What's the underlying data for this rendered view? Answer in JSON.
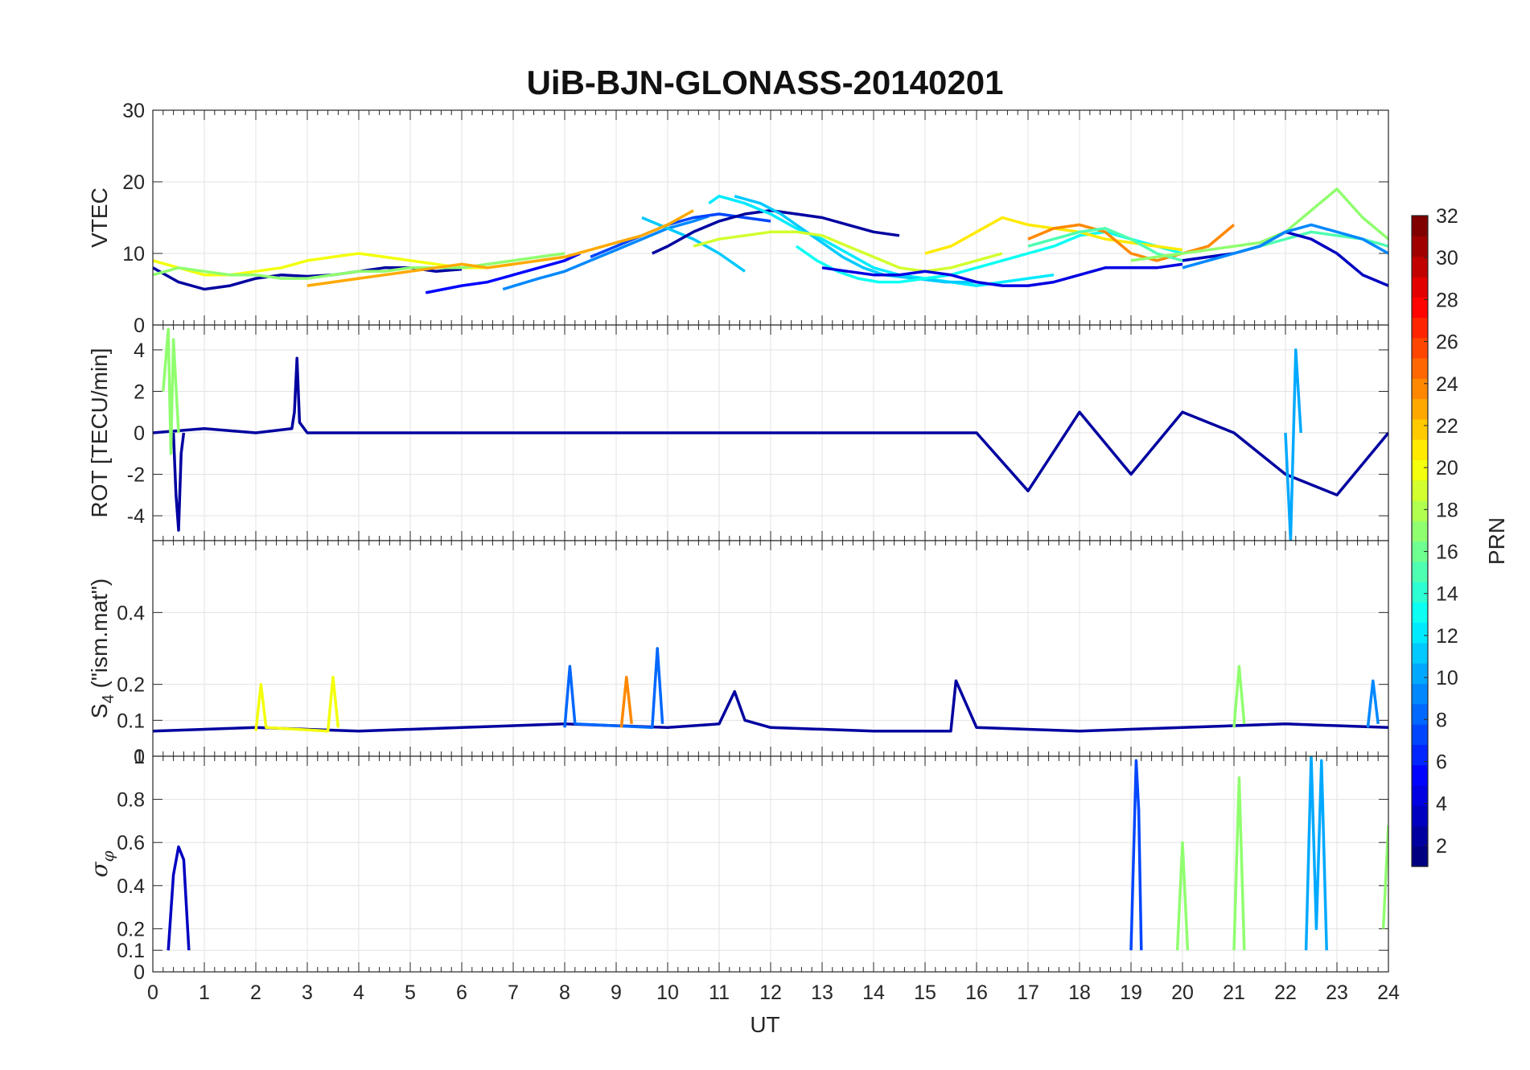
{
  "chart_data": {
    "type": "line",
    "title": "UiB-BJN-GLONASS-20140201",
    "xlabel": "UT",
    "xlim": [
      0,
      24
    ],
    "x_ticks": [
      "0",
      "1",
      "2",
      "3",
      "4",
      "5",
      "6",
      "7",
      "8",
      "9",
      "10",
      "11",
      "12",
      "13",
      "14",
      "15",
      "16",
      "17",
      "18",
      "19",
      "20",
      "21",
      "22",
      "23",
      "24"
    ],
    "grid": true,
    "colormap": "jet",
    "colorbar": {
      "label": "PRN",
      "range": [
        1,
        32
      ],
      "ticks": [
        "2",
        "4",
        "6",
        "8",
        "10",
        "12",
        "14",
        "16",
        "18",
        "20",
        "22",
        "24",
        "26",
        "28",
        "30",
        "32"
      ],
      "placement": "right"
    },
    "panels": [
      {
        "id": "vtec",
        "ylabel": "VTEC",
        "ylim": [
          0,
          30
        ],
        "y_ticks": [
          "0",
          "10",
          "20",
          "30"
        ],
        "series": [
          {
            "prn": 2,
            "x": [
              0,
              0.5,
              1,
              1.5,
              2,
              2.5,
              3,
              3.5,
              4,
              4.5,
              5,
              5.5,
              6
            ],
            "y": [
              8,
              6,
              5,
              5.5,
              6.5,
              7,
              6.8,
              7,
              7.5,
              8,
              8,
              7.5,
              7.8
            ]
          },
          {
            "prn": 5,
            "x": [
              5.3,
              6,
              6.5,
              7,
              7.5,
              8,
              8.3
            ],
            "y": [
              4.5,
              5.5,
              6,
              7,
              8,
              9,
              10
            ]
          },
          {
            "prn": 9,
            "x": [
              6.8,
              7.5,
              8,
              8.5,
              9,
              9.5,
              10,
              10.5,
              10.8
            ],
            "y": [
              5,
              6.5,
              7.5,
              9,
              10.5,
              12,
              13.5,
              14.5,
              15.2
            ]
          },
          {
            "prn": 7,
            "x": [
              8.5,
              9,
              9.5,
              10,
              10.5,
              11,
              11.5,
              12
            ],
            "y": [
              9.5,
              11,
              12.5,
              14,
              15,
              15.5,
              15,
              14.5
            ]
          },
          {
            "prn": 11,
            "x": [
              9.5,
              10,
              10.5,
              11,
              11.5
            ],
            "y": [
              15,
              13.5,
              12,
              10,
              7.5
            ]
          },
          {
            "prn": 2,
            "x": [
              9.7,
              10,
              10.5,
              11,
              11.5,
              12,
              12.5,
              13,
              13.5,
              14,
              14.5
            ],
            "y": [
              10,
              11,
              13,
              14.5,
              15.5,
              16,
              15.5,
              15,
              14,
              13,
              12.5
            ]
          },
          {
            "prn": 12,
            "x": [
              10.8,
              11,
              11.5,
              12,
              12.5,
              13,
              13.5,
              14,
              14.5,
              15,
              15.5,
              16,
              16.5,
              17,
              17.5
            ],
            "y": [
              17,
              18,
              17,
              15.5,
              13.5,
              12,
              10,
              8,
              7,
              6.5,
              6,
              5.5,
              6,
              6.5,
              7
            ]
          },
          {
            "prn": 11,
            "x": [
              11.3,
              11.8,
              12.2,
              12.6,
              13,
              13.4,
              13.8,
              14.2,
              14.8,
              15.4,
              16
            ],
            "y": [
              18,
              17,
              15.5,
              13.5,
              11.5,
              9.5,
              8,
              7,
              6.5,
              6,
              6
            ]
          },
          {
            "prn": 13,
            "x": [
              12.5,
              12.9,
              13.3,
              13.7,
              14.1,
              14.5,
              15,
              15.5,
              16,
              16.5,
              17,
              17.5,
              18,
              18.5,
              19,
              19.5,
              20
            ],
            "y": [
              11,
              9,
              7.5,
              6.5,
              6,
              6,
              6.5,
              7,
              8,
              9,
              10,
              11,
              12.5,
              13,
              12,
              11,
              10
            ]
          },
          {
            "prn": 19,
            "x": [
              10.5,
              11,
              11.5,
              12,
              12.5,
              13,
              13.5,
              14,
              14.5,
              15,
              15.5,
              16,
              16.5
            ],
            "y": [
              11,
              12,
              12.5,
              13,
              13,
              12.5,
              11,
              9.5,
              8,
              7.5,
              8,
              9,
              10
            ]
          },
          {
            "prn": 4,
            "x": [
              13,
              13.5,
              14,
              14.5,
              15,
              15.5,
              16,
              16.5,
              17,
              17.5,
              18,
              18.5,
              19,
              19.5,
              20
            ],
            "y": [
              8,
              7.5,
              7,
              7,
              7.5,
              7,
              6,
              5.5,
              5.5,
              6,
              7,
              8,
              8,
              8,
              8.5
            ]
          },
          {
            "prn": 20,
            "x": [
              0,
              0.5,
              1,
              1.5,
              2,
              2.5,
              3,
              3.5,
              4,
              4.5,
              5,
              5.5,
              6,
              6.5,
              7
            ],
            "y": [
              9,
              8,
              7,
              7,
              7.5,
              8,
              9,
              9.5,
              10,
              9.5,
              9,
              8.5,
              8,
              8,
              8.5
            ]
          },
          {
            "prn": 17,
            "x": [
              0,
              0.5,
              1,
              1.5,
              2,
              2.5,
              3,
              3.5,
              4,
              4.5,
              5,
              5.5,
              6,
              6.5,
              7,
              7.5,
              8
            ],
            "y": [
              7,
              8,
              7.5,
              7,
              7,
              6.5,
              6.5,
              7,
              7.5,
              7.5,
              8,
              8,
              8,
              8.5,
              9,
              9.5,
              10
            ]
          },
          {
            "prn": 23,
            "x": [
              3,
              3.5,
              4,
              4.5,
              5,
              5.5,
              6,
              6.5,
              7,
              7.5,
              8,
              8.5,
              9,
              9.5,
              10,
              10.5
            ],
            "y": [
              5.5,
              6,
              6.5,
              7,
              7.5,
              8,
              8.5,
              8,
              8.5,
              9,
              9.5,
              10.5,
              11.5,
              12.5,
              14,
              16
            ]
          },
          {
            "prn": 21,
            "x": [
              15,
              15.5,
              16,
              16.5,
              17,
              17.5,
              18,
              18.5,
              19,
              19.5,
              20
            ],
            "y": [
              10,
              11,
              13,
              15,
              14,
              13.5,
              13,
              12,
              11.5,
              11,
              10.5
            ]
          },
          {
            "prn": 24,
            "x": [
              17,
              17.5,
              18,
              18.5,
              19,
              19.5,
              20,
              20.5,
              21
            ],
            "y": [
              12,
              13.5,
              14,
              13,
              10,
              9,
              10,
              11,
              14
            ]
          },
          {
            "prn": 15,
            "x": [
              17,
              17.5,
              18,
              18.5,
              19,
              19.5,
              20,
              20.5,
              21,
              21.5,
              22,
              22.5,
              23,
              23.5,
              24
            ],
            "y": [
              11,
              12,
              13,
              13.5,
              12,
              10,
              9,
              9.5,
              10,
              11,
              12,
              13,
              12.5,
              12,
              11
            ]
          },
          {
            "prn": 17,
            "x": [
              19,
              19.5,
              20,
              20.5,
              21,
              21.5,
              22,
              22.5,
              23,
              23.5,
              24
            ],
            "y": [
              9,
              9.5,
              10,
              10.5,
              11,
              11.5,
              13,
              16,
              19,
              15,
              12
            ]
          },
          {
            "prn": 3,
            "x": [
              20,
              20.5,
              21,
              21.5,
              22,
              22.5,
              23,
              23.5,
              24
            ],
            "y": [
              9,
              9.5,
              10,
              11,
              13,
              12,
              10,
              7,
              5.5
            ]
          },
          {
            "prn": 9,
            "x": [
              20,
              20.5,
              21,
              21.5,
              22,
              22.5,
              23,
              23.5,
              24
            ],
            "y": [
              8,
              9,
              10,
              11,
              13,
              14,
              13,
              12,
              10
            ]
          }
        ]
      },
      {
        "id": "rot",
        "ylabel": "ROT [TECU/min]",
        "ylim": [
          -5.2,
          5.2
        ],
        "y_ticks": [
          "-4",
          "-2",
          "0",
          "2",
          "4"
        ],
        "series": [
          {
            "prn": 2,
            "x": [
              0,
              1,
              2,
              2.7,
              2.75,
              2.8,
              2.85,
              3,
              5,
              8,
              12,
              16,
              17,
              18,
              19,
              20,
              21,
              22,
              23,
              24
            ],
            "y": [
              0,
              0.2,
              0,
              0.2,
              1,
              3.6,
              0.5,
              0,
              0,
              0,
              0,
              0,
              -2.8,
              1,
              -2,
              1,
              0,
              -2,
              -3,
              0
            ]
          },
          {
            "prn": 2,
            "x": [
              0.4,
              0.45,
              0.5,
              0.55,
              0.6
            ],
            "y": [
              0,
              -3,
              -4.7,
              -1,
              0
            ]
          },
          {
            "prn": 17,
            "x": [
              0.2,
              0.3,
              0.35,
              0.4,
              0.5
            ],
            "y": [
              2,
              5,
              -1,
              4.5,
              0
            ]
          },
          {
            "prn": 10,
            "x": [
              22,
              22.1,
              22.2,
              22.3
            ],
            "y": [
              0,
              -5.2,
              4,
              0
            ]
          }
        ]
      },
      {
        "id": "s4",
        "ylabel": "S4 (\"ism.mat\")",
        "ylabel_main": "S",
        "ylabel_sub": "4",
        "ylabel_rest": " (\"ism.mat\")",
        "ylim": [
          0,
          0.6
        ],
        "y_ticks": [
          "0",
          "0.1",
          "0.2",
          "0.4"
        ],
        "series": [
          {
            "prn": 2,
            "x": [
              0,
              2,
              4,
              6,
              8,
              10,
              11,
              11.3,
              11.5,
              12,
              14,
              15.5,
              15.6,
              16,
              18,
              20,
              22,
              24
            ],
            "y": [
              0.07,
              0.08,
              0.07,
              0.08,
              0.09,
              0.08,
              0.09,
              0.18,
              0.1,
              0.08,
              0.07,
              0.07,
              0.21,
              0.08,
              0.07,
              0.08,
              0.09,
              0.08
            ]
          },
          {
            "prn": 8,
            "x": [
              8,
              8.1,
              8.2,
              9.7,
              9.8,
              9.9
            ],
            "y": [
              0.08,
              0.25,
              0.09,
              0.08,
              0.3,
              0.09
            ]
          },
          {
            "prn": 20,
            "x": [
              2,
              2.1,
              2.2,
              3.4,
              3.5,
              3.6
            ],
            "y": [
              0.07,
              0.2,
              0.08,
              0.07,
              0.22,
              0.08
            ]
          },
          {
            "prn": 24,
            "x": [
              9.1,
              9.2,
              9.3
            ],
            "y": [
              0.08,
              0.22,
              0.09
            ]
          },
          {
            "prn": 17,
            "x": [
              21,
              21.1,
              21.2
            ],
            "y": [
              0.08,
              0.25,
              0.09
            ]
          },
          {
            "prn": 9,
            "x": [
              23.6,
              23.7,
              23.8
            ],
            "y": [
              0.08,
              0.21,
              0.09
            ]
          }
        ]
      },
      {
        "id": "sigma_phi",
        "ylabel": "σφ",
        "ylabel_main": "σ",
        "ylabel_sub": "φ",
        "ylim": [
          0,
          1
        ],
        "y_ticks": [
          "0",
          "0.1",
          "0.2",
          "0.4",
          "0.6",
          "0.8",
          "1"
        ],
        "series": [
          {
            "prn": 3,
            "x": [
              0.3,
              0.4,
              0.5,
              0.6,
              0.7
            ],
            "y": [
              0.1,
              0.45,
              0.58,
              0.52,
              0.1
            ]
          },
          {
            "prn": 7,
            "x": [
              19,
              19.1,
              19.15,
              19.2
            ],
            "y": [
              0.1,
              0.98,
              0.75,
              0.1
            ]
          },
          {
            "prn": 17,
            "x": [
              19.9,
              20,
              20.1
            ],
            "y": [
              0.1,
              0.6,
              0.1
            ]
          },
          {
            "prn": 17,
            "x": [
              21,
              21.1,
              21.2
            ],
            "y": [
              0.1,
              0.9,
              0.1
            ]
          },
          {
            "prn": 10,
            "x": [
              22.4,
              22.5,
              22.6,
              22.7,
              22.8
            ],
            "y": [
              0.1,
              1.0,
              0.2,
              0.98,
              0.1
            ]
          },
          {
            "prn": 17,
            "x": [
              23.9,
              24
            ],
            "y": [
              0.2,
              0.68
            ]
          }
        ]
      }
    ]
  }
}
